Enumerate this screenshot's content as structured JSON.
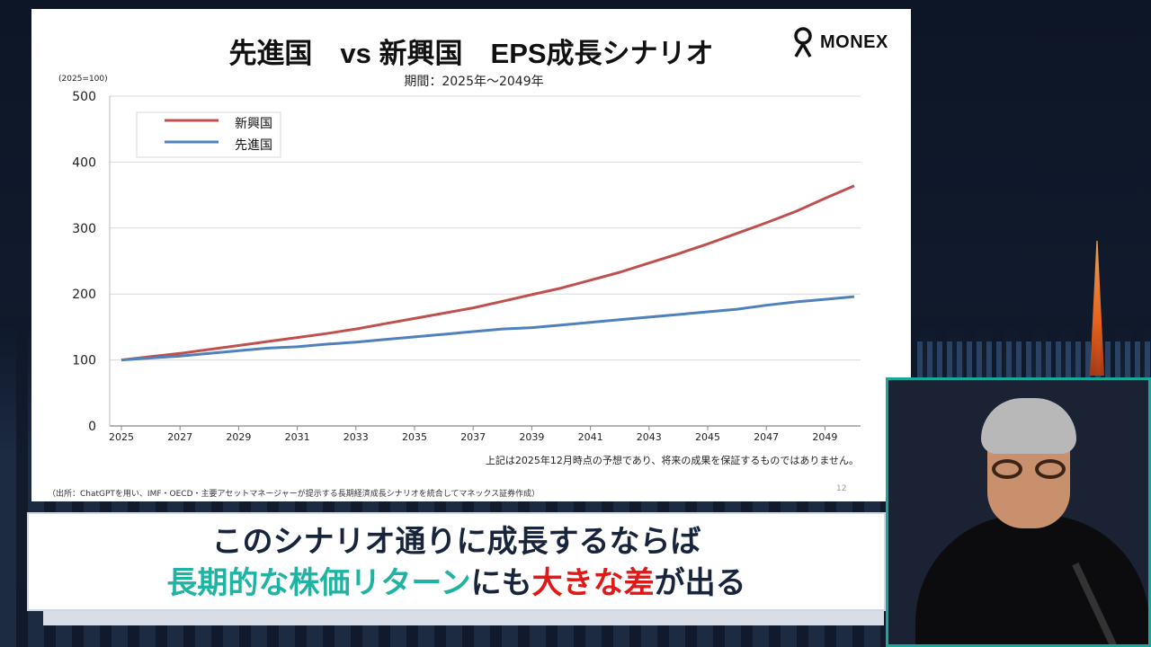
{
  "slide": {
    "title": "先進国　vs 新興国　EPS成長シナリオ",
    "brand": "MONEX",
    "disclaimer": "上記は2025年12月時点の予想であり、将来の成果を保証するものではありません。",
    "source": "（出所：ChatGPTを用い、IMF・OECD・主要アセットマネージャーが提示する長期経済成長シナリオを統合してマネックス証券作成）",
    "page_number": "12"
  },
  "chart_data": {
    "type": "line",
    "title": "期間：2025年～2049年",
    "ylabel": "(2025=100)",
    "xlabel": "",
    "ylim": [
      0,
      500
    ],
    "yticks": [
      "0",
      "100",
      "200",
      "300",
      "400",
      "500"
    ],
    "x": [
      2025,
      2026,
      2027,
      2028,
      2029,
      2030,
      2031,
      2032,
      2033,
      2034,
      2035,
      2036,
      2037,
      2038,
      2039,
      2040,
      2041,
      2042,
      2043,
      2044,
      2045,
      2046,
      2047,
      2048,
      2049,
      2050
    ],
    "xtick_labels": [
      "2025",
      "2027",
      "2029",
      "2031",
      "2033",
      "2035",
      "2037",
      "2039",
      "2041",
      "2043",
      "2045",
      "2047",
      "2049"
    ],
    "grid": true,
    "legend": "top-left",
    "series": [
      {
        "name": "新興国",
        "color": "#c0504d",
        "values": [
          100,
          105,
          110,
          116,
          122,
          128,
          134,
          140,
          147,
          155,
          163,
          171,
          179,
          189,
          199,
          209,
          221,
          233,
          247,
          261,
          276,
          292,
          308,
          325,
          345,
          364
        ]
      },
      {
        "name": "先進国",
        "color": "#4f81bd",
        "values": [
          100,
          103,
          106,
          110,
          114,
          118,
          120,
          124,
          127,
          131,
          135,
          139,
          143,
          147,
          149,
          153,
          157,
          161,
          165,
          169,
          173,
          177,
          183,
          188,
          192,
          196
        ]
      }
    ]
  },
  "caption": {
    "line1": "このシナリオ通りに成長するならば",
    "line2_a": "長期的な株価リターン",
    "line2_b": "にも",
    "line2_c": "大きな差",
    "line2_d": "が出る"
  }
}
